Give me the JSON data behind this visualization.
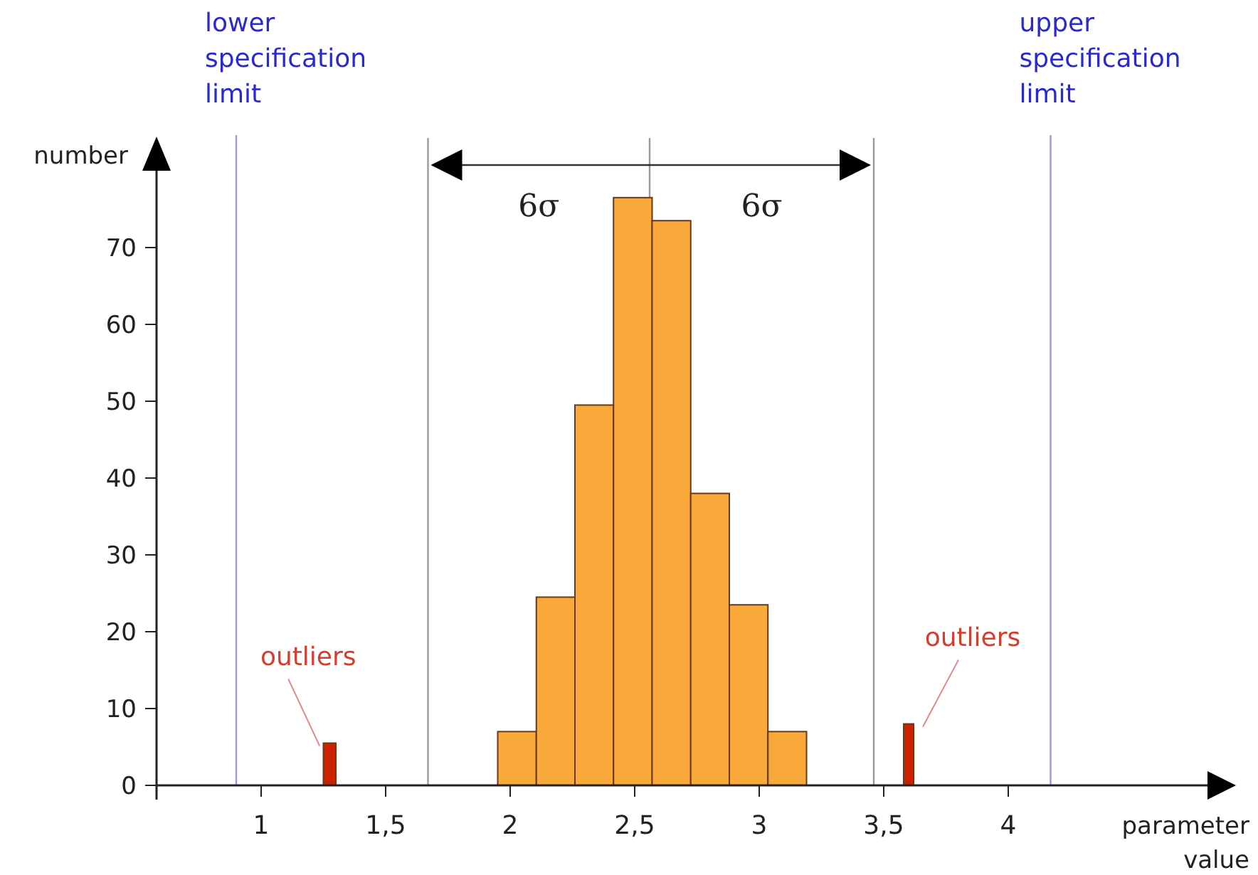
{
  "chart_data": {
    "type": "histogram",
    "xlabel": "parameter value",
    "ylabel": "number",
    "bins": [
      1.25,
      1.3,
      1.95,
      2.105,
      2.26,
      2.415,
      2.57,
      2.725,
      2.88,
      3.035,
      3.19,
      3.58,
      3.62
    ],
    "values": [
      5.5,
      null,
      7,
      24.5,
      49.5,
      76.5,
      73.5,
      38,
      23.5,
      7,
      null,
      8
    ],
    "colors": [
      "#cc2200",
      "#cc2200",
      "#f9a83a",
      "#f9a83a",
      "#f9a83a",
      "#f9a83a",
      "#f9a83a",
      "#f9a83a",
      "#f9a83a",
      "#f9a83a",
      "#cc2200",
      "#cc2200"
    ],
    "xlim": [
      0.58,
      4.8
    ],
    "ylim": [
      0,
      80
    ],
    "xticks": [
      1,
      {
        "value": 1.5,
        "label": "1,5"
      },
      2,
      {
        "value": 2.5,
        "label": "2,5"
      },
      3,
      {
        "value": 3.5,
        "label": "3,5"
      },
      4
    ],
    "yticks": [
      0,
      10,
      20,
      30,
      40,
      50,
      60,
      70
    ],
    "ref_lines": [
      {
        "axis": "x",
        "value": 0.9,
        "label": "lower specification limit",
        "color": "#9999dd"
      },
      {
        "axis": "x",
        "value": 1.67,
        "color": "#999999"
      },
      {
        "axis": "x",
        "value": 2.56,
        "color": "#999999"
      },
      {
        "axis": "x",
        "value": 3.46,
        "color": "#999999"
      },
      {
        "axis": "x",
        "value": 4.17,
        "label": "upper specification limit",
        "color": "#9999dd"
      }
    ],
    "annotations": [
      "6σ",
      "6σ",
      {
        "text": "outliers",
        "x": 1.275,
        "y": 5.5
      },
      {
        "text": "outliers",
        "x": 3.6,
        "y": 8
      }
    ]
  }
}
